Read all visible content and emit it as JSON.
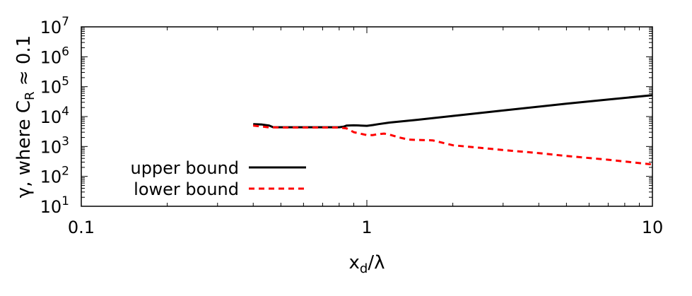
{
  "chart_data": {
    "type": "line",
    "xscale": "log",
    "yscale": "log",
    "xlim": [
      0.1,
      10
    ],
    "ylim": [
      10,
      10000000
    ],
    "x_ticks": [
      {
        "value": 0.1,
        "label": "0.1"
      },
      {
        "value": 1,
        "label": "1"
      },
      {
        "value": 10,
        "label": "10"
      }
    ],
    "y_ticks": [
      {
        "value": 10,
        "mant": "10",
        "exp": "1"
      },
      {
        "value": 100,
        "mant": "10",
        "exp": "2"
      },
      {
        "value": 1000,
        "mant": "10",
        "exp": "3"
      },
      {
        "value": 10000,
        "mant": "10",
        "exp": "4"
      },
      {
        "value": 100000,
        "mant": "10",
        "exp": "5"
      },
      {
        "value": 1000000,
        "mant": "10",
        "exp": "6"
      },
      {
        "value": 10000000,
        "mant": "10",
        "exp": "7"
      }
    ],
    "xlabel": {
      "main": "x",
      "sub": "d",
      "rest": "/λ"
    },
    "ylabel": {
      "main": "γ,  where  C",
      "sub": "R",
      "rest": " ≈ 0.1"
    },
    "legend_position": "bottom-left",
    "series": [
      {
        "name": "upper bound",
        "color": "#000000",
        "style": "solid",
        "x": [
          0.4,
          0.43,
          0.455,
          0.47,
          0.5,
          0.6,
          0.7,
          0.8,
          0.83,
          0.85,
          0.9,
          0.95,
          1.0,
          1.05,
          1.1,
          1.2,
          1.5,
          2,
          3,
          5,
          7,
          10
        ],
        "y": [
          5600,
          5400,
          5000,
          4400,
          4400,
          4400,
          4400,
          4400,
          4600,
          5000,
          5100,
          5000,
          4900,
          5200,
          5600,
          6300,
          7800,
          10500,
          16000,
          27000,
          37000,
          52000
        ]
      },
      {
        "name": "lower bound",
        "color": "#ff0000",
        "style": "dashed",
        "x": [
          0.4,
          0.45,
          0.5,
          0.6,
          0.7,
          0.8,
          0.85,
          0.9,
          1.0,
          1.05,
          1.1,
          1.15,
          1.2,
          1.3,
          1.4,
          1.5,
          1.7,
          1.8,
          2,
          2.5,
          3,
          4,
          5,
          7,
          10
        ],
        "y": [
          5000,
          4400,
          4300,
          4300,
          4300,
          4300,
          4000,
          3000,
          2400,
          2400,
          2600,
          2700,
          2500,
          2000,
          1700,
          1650,
          1600,
          1400,
          1100,
          900,
          760,
          600,
          480,
          360,
          250
        ]
      }
    ]
  }
}
